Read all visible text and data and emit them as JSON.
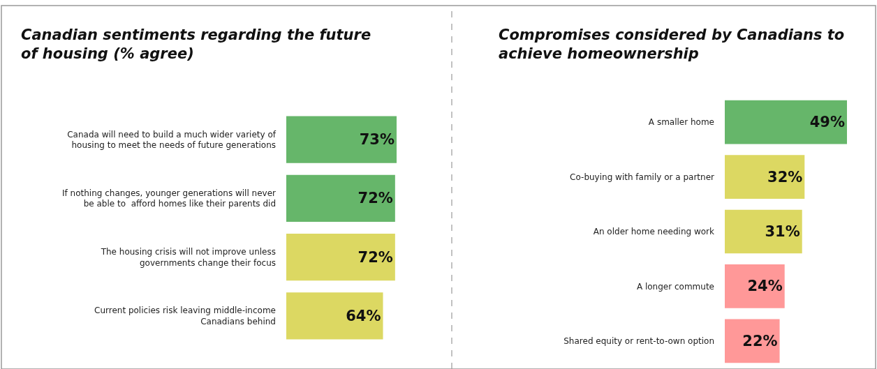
{
  "chart_data": [
    {
      "type": "bar",
      "orientation": "horizontal",
      "title": "Canadian sentiments regarding the future of housing (% agree)",
      "categories": [
        "Canada will need to build a much wider variety of housing to meet the needs of future generations",
        "If nothing changes, younger generations will never be able to  afford homes like their parents did",
        "The housing crisis will not improve unless governments change their focus",
        "Current policies risk leaving middle-income Canadians behind"
      ],
      "values": [
        73,
        72,
        72,
        64
      ],
      "colors": [
        "#66b66a",
        "#66b66a",
        "#dcd862",
        "#dcd862"
      ],
      "value_labels": [
        "73%",
        "72%",
        "72%",
        "64%"
      ]
    },
    {
      "type": "bar",
      "orientation": "horizontal",
      "title": "Compromises considered by Canadians to achieve homeownership",
      "categories": [
        "A smaller home",
        "Co-buying with family or a partner",
        "An older home needing work",
        "A longer commute",
        "Shared equity or rent-to-own option"
      ],
      "values": [
        49,
        32,
        31,
        24,
        22
      ],
      "colors": [
        "#66b66a",
        "#dcd862",
        "#dcd862",
        "#ff9898",
        "#ff9898"
      ],
      "value_labels": [
        "49%",
        "32%",
        "31%",
        "24%",
        "22%"
      ]
    }
  ]
}
